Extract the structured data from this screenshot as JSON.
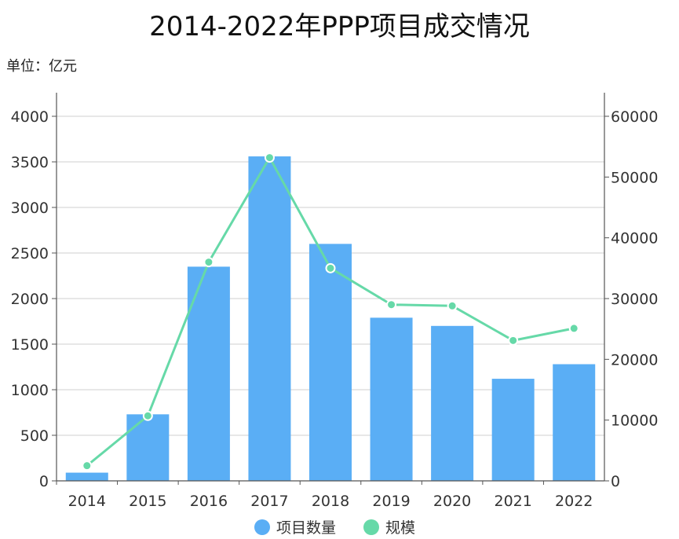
{
  "chart_data": {
    "type": "bar",
    "title": "2014-2022年PPP项目成交情况",
    "unit_label": "单位：亿元",
    "categories": [
      "2014",
      "2015",
      "2016",
      "2017",
      "2018",
      "2019",
      "2020",
      "2021",
      "2022"
    ],
    "series": [
      {
        "name": "项目数量",
        "type": "bar",
        "axis": "left",
        "color": "#5aaef5",
        "values": [
          90,
          730,
          2350,
          3560,
          2600,
          1790,
          1700,
          1120,
          1280
        ]
      },
      {
        "name": "规模",
        "type": "line",
        "axis": "right",
        "color": "#66d9a8",
        "values": [
          2500,
          10700,
          36000,
          53200,
          35000,
          29000,
          28800,
          23100,
          25100
        ]
      }
    ],
    "y_left": {
      "min": 0,
      "max": 4000,
      "ticks": [
        0,
        500,
        1000,
        1500,
        2000,
        2500,
        3000,
        3500,
        4000
      ]
    },
    "y_right": {
      "min": 0,
      "max": 60000,
      "ticks": [
        0,
        10000,
        20000,
        30000,
        40000,
        50000,
        60000
      ]
    },
    "grid": true,
    "legend_position": "bottom"
  }
}
